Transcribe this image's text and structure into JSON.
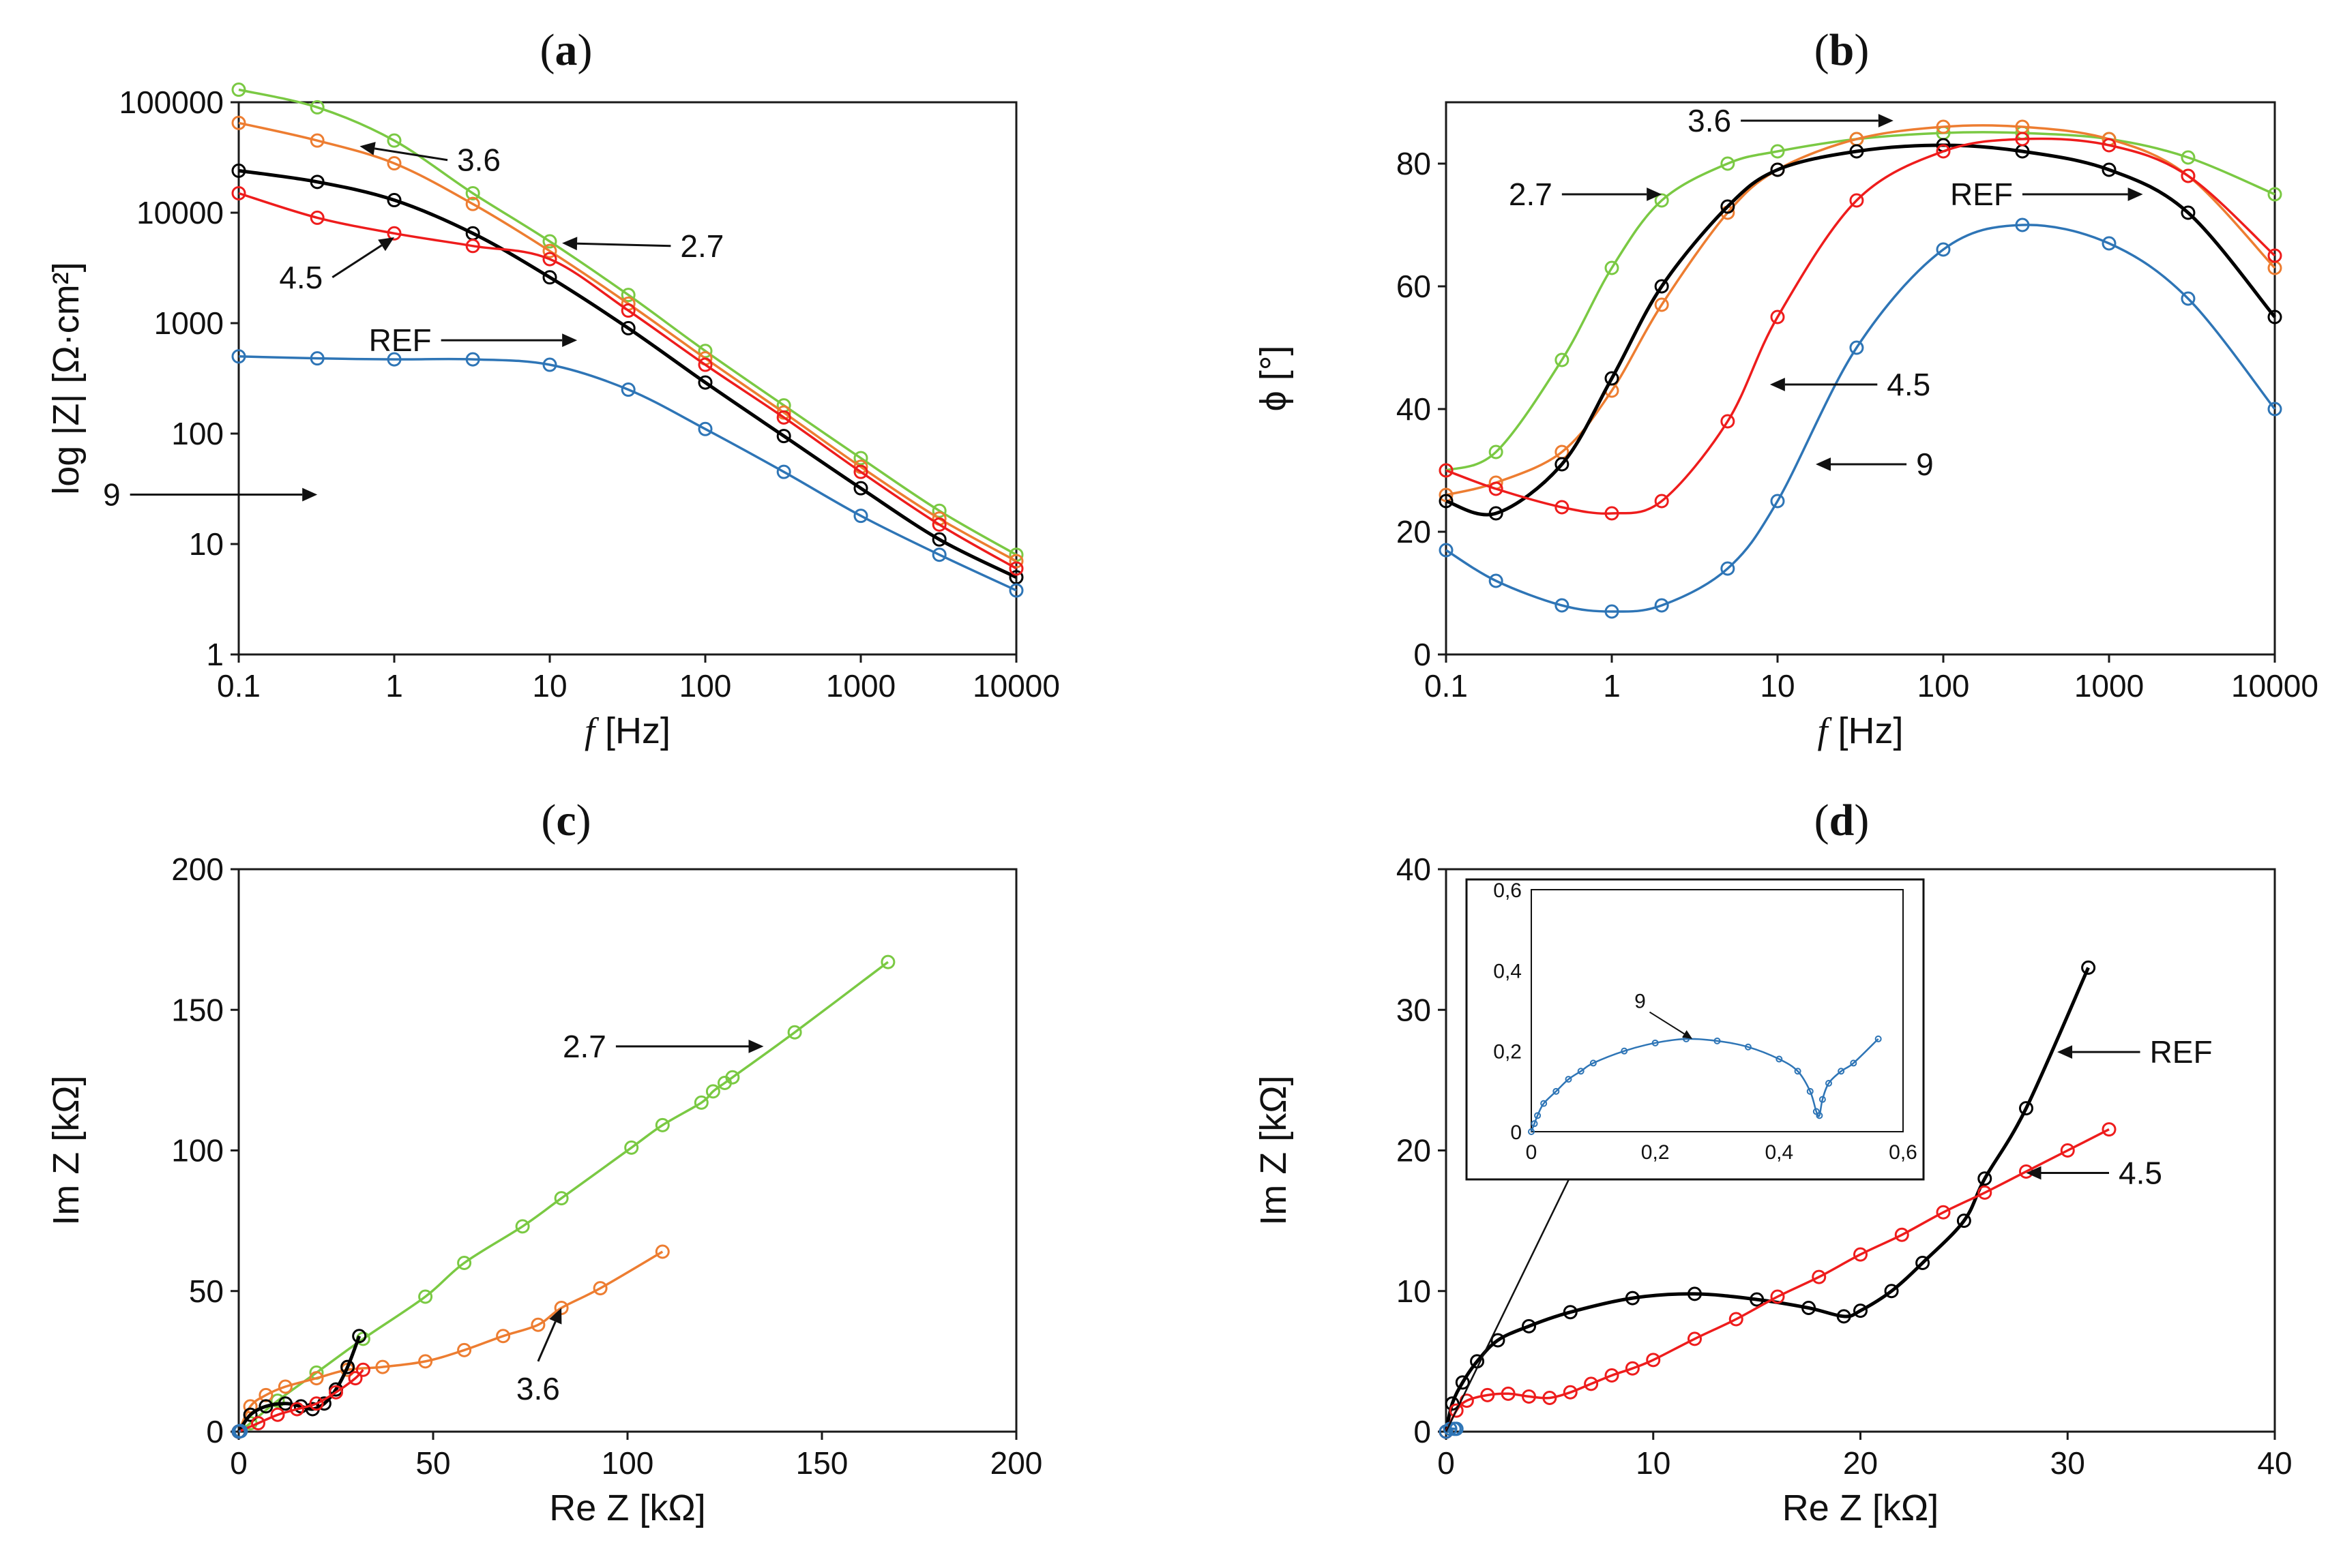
{
  "colors": {
    "REF": "#000000",
    "2.7": "#7ac943",
    "3.6": "#ed7d31",
    "4.5": "#ee1c1c",
    "9": "#2e75b6"
  },
  "chart_data": [
    {
      "id": "a",
      "panel_label": "a",
      "type": "line",
      "xscale": "log",
      "yscale": "log",
      "xlim": [
        0.1,
        10000
      ],
      "ylim": [
        1,
        100000
      ],
      "xticks": [
        "0.1",
        "1",
        "10",
        "100",
        "1000",
        "10000"
      ],
      "yticks": [
        "1",
        "10",
        "100",
        "1000",
        "10000",
        "100000"
      ],
      "xlabel_italic": "f",
      "xlabel_rest": " [Hz]",
      "ylabel": "log |Z| [Ω·cm²]",
      "series": [
        {
          "name": "2.7",
          "x": [
            0.1,
            0.32,
            1,
            3.2,
            10,
            32,
            100,
            320,
            1000,
            3200,
            10000
          ],
          "y": [
            130000,
            90000,
            45000,
            15000,
            5500,
            1800,
            560,
            180,
            60,
            20,
            8
          ]
        },
        {
          "name": "3.6",
          "x": [
            0.1,
            0.32,
            1,
            3.2,
            10,
            32,
            100,
            320,
            1000,
            3200,
            10000
          ],
          "y": [
            65000,
            45000,
            28000,
            12000,
            4500,
            1500,
            480,
            155,
            50,
            17,
            7
          ]
        },
        {
          "name": "REF",
          "x": [
            0.1,
            0.32,
            1,
            3.2,
            10,
            32,
            100,
            320,
            1000,
            3200,
            10000
          ],
          "y": [
            24000,
            19000,
            13000,
            6500,
            2600,
            900,
            290,
            95,
            32,
            11,
            5
          ]
        },
        {
          "name": "4.5",
          "x": [
            0.1,
            0.32,
            1,
            3.2,
            10,
            32,
            100,
            320,
            1000,
            3200,
            10000
          ],
          "y": [
            15000,
            9000,
            6500,
            5000,
            3800,
            1300,
            420,
            140,
            45,
            15,
            6
          ]
        },
        {
          "name": "9",
          "x": [
            0.1,
            0.32,
            1,
            3.2,
            10,
            32,
            100,
            320,
            1000,
            3200,
            10000
          ],
          "y": [
            500,
            480,
            470,
            470,
            420,
            250,
            110,
            45,
            18,
            8,
            3.8
          ]
        }
      ],
      "annotations": [
        {
          "text": "3.6",
          "series": "3.6",
          "x": 0.6,
          "y": 40000,
          "tx": 2.2,
          "ty": 30000
        },
        {
          "text": "2.7",
          "series": "2.7",
          "x": 12,
          "y": 5300,
          "tx": 60,
          "ty": 5000
        },
        {
          "text": "4.5",
          "series": "4.5",
          "x": 1.0,
          "y": 6000,
          "tx": 0.4,
          "ty": 2600
        },
        {
          "text": "REF",
          "series": "REF",
          "x": 15,
          "y": 700,
          "tx": 2,
          "ty": 700
        },
        {
          "text": "9",
          "series": "9",
          "x": 0.32,
          "y": 28,
          "tx": 0.02,
          "ty": 28
        }
      ]
    },
    {
      "id": "b",
      "panel_label": "b",
      "type": "line",
      "xscale": "log",
      "yscale": "linear",
      "xlim": [
        0.1,
        10000
      ],
      "ylim": [
        0,
        90
      ],
      "xticks": [
        "0.1",
        "1",
        "10",
        "100",
        "1000",
        "10000"
      ],
      "yticks": [
        "0",
        "20",
        "40",
        "60",
        "80"
      ],
      "xlabel_italic": "f",
      "xlabel_rest": " [Hz]",
      "ylabel": "ϕ [°]",
      "series": [
        {
          "name": "2.7",
          "x": [
            0.1,
            0.2,
            0.5,
            1,
            2,
            5,
            10,
            30,
            100,
            300,
            1000,
            3000,
            10000
          ],
          "y": [
            30,
            33,
            48,
            63,
            74,
            80,
            82,
            84,
            85,
            85,
            84,
            81,
            75
          ]
        },
        {
          "name": "3.6",
          "x": [
            0.1,
            0.2,
            0.5,
            1,
            2,
            5,
            10,
            30,
            100,
            300,
            1000,
            3000,
            10000
          ],
          "y": [
            26,
            28,
            33,
            43,
            57,
            72,
            79,
            84,
            86,
            86,
            84,
            78,
            63
          ]
        },
        {
          "name": "REF",
          "x": [
            0.1,
            0.2,
            0.5,
            1,
            2,
            5,
            10,
            30,
            100,
            300,
            1000,
            3000,
            10000
          ],
          "y": [
            25,
            23,
            31,
            45,
            60,
            73,
            79,
            82,
            83,
            82,
            79,
            72,
            55
          ]
        },
        {
          "name": "4.5",
          "x": [
            0.1,
            0.2,
            0.5,
            1,
            2,
            5,
            10,
            30,
            100,
            300,
            1000,
            3000,
            10000
          ],
          "y": [
            30,
            27,
            24,
            23,
            25,
            38,
            55,
            74,
            82,
            84,
            83,
            78,
            65
          ]
        },
        {
          "name": "9",
          "x": [
            0.1,
            0.2,
            0.5,
            1,
            2,
            5,
            10,
            30,
            100,
            300,
            1000,
            3000,
            10000
          ],
          "y": [
            17,
            12,
            8,
            7,
            8,
            14,
            25,
            50,
            66,
            70,
            67,
            58,
            40
          ]
        }
      ],
      "annotations": [
        {
          "text": "3.6",
          "series": "3.6",
          "x": 50,
          "y": 87,
          "tx": 6,
          "ty": 87
        },
        {
          "text": "2.7",
          "series": "2.7",
          "x": 2,
          "y": 75,
          "tx": 0.5,
          "ty": 75
        },
        {
          "text": "REF",
          "series": "REF",
          "x": 1600,
          "y": 75,
          "tx": 300,
          "ty": 75
        },
        {
          "text": "4.5",
          "series": "4.5",
          "x": 9,
          "y": 44,
          "tx": 40,
          "ty": 44
        },
        {
          "text": "9",
          "series": "9",
          "x": 17,
          "y": 31,
          "tx": 60,
          "ty": 31
        }
      ]
    },
    {
      "id": "c",
      "panel_label": "c",
      "type": "line",
      "xscale": "linear",
      "yscale": "linear",
      "xlim": [
        0,
        200
      ],
      "ylim": [
        0,
        200
      ],
      "xticks": [
        "0",
        "50",
        "100",
        "150",
        "200"
      ],
      "yticks": [
        "0",
        "50",
        "100",
        "150",
        "200"
      ],
      "xlabel": "Re Z [kΩ]",
      "ylabel": "Im Z [kΩ]",
      "series": [
        {
          "name": "2.7",
          "x": [
            0,
            3,
            10,
            20,
            32,
            48,
            58,
            73,
            83,
            101,
            109,
            119,
            122,
            125,
            127,
            143,
            167
          ],
          "y": [
            0,
            3,
            11,
            21,
            33,
            48,
            60,
            73,
            83,
            101,
            109,
            117,
            121,
            124,
            126,
            142,
            167
          ]
        },
        {
          "name": "3.6",
          "x": [
            0,
            3,
            7,
            12,
            20,
            28,
            37,
            48,
            58,
            68,
            77,
            83,
            93,
            109
          ],
          "y": [
            0,
            9,
            13,
            16,
            19,
            22,
            23,
            25,
            29,
            34,
            38,
            44,
            51,
            64
          ]
        },
        {
          "name": "REF",
          "x": [
            0,
            3,
            7,
            12,
            16,
            19,
            22,
            25,
            28,
            31
          ],
          "y": [
            0,
            6,
            9,
            10,
            9,
            8,
            10,
            15,
            23,
            34
          ]
        },
        {
          "name": "4.5",
          "x": [
            0,
            5,
            10,
            15,
            20,
            25,
            30,
            32
          ],
          "y": [
            0,
            3,
            6,
            8,
            10,
            14,
            19,
            22
          ]
        },
        {
          "name": "9",
          "x": [
            0,
            0.3,
            0.5
          ],
          "y": [
            0,
            0.2,
            0.2
          ]
        }
      ],
      "annotations": [
        {
          "text": "2.7",
          "series": "2.7",
          "x": 135,
          "y": 137,
          "tx": 97,
          "ty": 137
        },
        {
          "text": "3.6",
          "series": "3.6",
          "x": 83,
          "y": 44,
          "tx": 77,
          "ty": 25
        }
      ]
    },
    {
      "id": "d",
      "panel_label": "d",
      "type": "line",
      "xscale": "linear",
      "yscale": "linear",
      "xlim": [
        0,
        40
      ],
      "ylim": [
        0,
        40
      ],
      "xticks": [
        "0",
        "10",
        "20",
        "30",
        "40"
      ],
      "yticks": [
        "0",
        "10",
        "20",
        "30",
        "40"
      ],
      "xlabel": "Re Z [kΩ]",
      "ylabel": "Im Z [kΩ]",
      "series": [
        {
          "name": "REF",
          "x": [
            0,
            0.3,
            0.8,
            1.5,
            2.5,
            4.0,
            6.0,
            9.0,
            12.0,
            15.0,
            17.5,
            19.2,
            20.0,
            21.5,
            23.0,
            25.0,
            26.0,
            28.0,
            31.0
          ],
          "y": [
            0,
            2,
            3.5,
            5,
            6.5,
            7.5,
            8.5,
            9.5,
            9.8,
            9.4,
            8.8,
            8.2,
            8.6,
            10,
            12,
            15,
            18,
            23,
            33
          ]
        },
        {
          "name": "4.5",
          "x": [
            0,
            0.5,
            1,
            2,
            3,
            4,
            5,
            6,
            7,
            8,
            9,
            10,
            12,
            14,
            16,
            18,
            20,
            22,
            24,
            26,
            28,
            30,
            32
          ],
          "y": [
            0,
            1.5,
            2.2,
            2.6,
            2.7,
            2.5,
            2.4,
            2.8,
            3.4,
            4.0,
            4.5,
            5.1,
            6.6,
            8.0,
            9.6,
            11.0,
            12.6,
            14.0,
            15.6,
            17.0,
            18.5,
            20.0,
            21.5
          ]
        },
        {
          "name": "9",
          "x": [
            0,
            0.2,
            0.4,
            0.5
          ],
          "y": [
            0,
            0.2,
            0.2,
            0.2
          ]
        }
      ],
      "annotations": [
        {
          "text": "REF",
          "series": "REF",
          "x": 29.5,
          "y": 27,
          "tx": 33.5,
          "ty": 27
        },
        {
          "text": "4.5",
          "series": "4.5",
          "x": 28,
          "y": 18.4,
          "tx": 32,
          "ty": 18.4
        }
      ],
      "inset": {
        "xlim": [
          0,
          0.6
        ],
        "ylim": [
          0,
          0.6
        ],
        "xticks": [
          "0",
          "0,2",
          "0,4",
          "0,6"
        ],
        "yticks": [
          "0",
          "0,2",
          "0,4",
          "0,6"
        ],
        "series": [
          {
            "name": "9",
            "x": [
              0,
              0.005,
              0.01,
              0.02,
              0.04,
              0.06,
              0.08,
              0.1,
              0.15,
              0.2,
              0.25,
              0.3,
              0.35,
              0.4,
              0.43,
              0.45,
              0.46,
              0.465,
              0.47,
              0.48,
              0.5,
              0.52,
              0.56
            ],
            "y": [
              0,
              0.02,
              0.04,
              0.07,
              0.1,
              0.13,
              0.15,
              0.17,
              0.2,
              0.22,
              0.23,
              0.225,
              0.21,
              0.18,
              0.15,
              0.1,
              0.05,
              0.04,
              0.08,
              0.12,
              0.15,
              0.17,
              0.23
            ]
          }
        ],
        "annotations": [
          {
            "text": "9",
            "series": "9",
            "x": 0.26,
            "y": 0.23,
            "tx": 0.18,
            "ty": 0.31
          }
        ]
      }
    }
  ]
}
